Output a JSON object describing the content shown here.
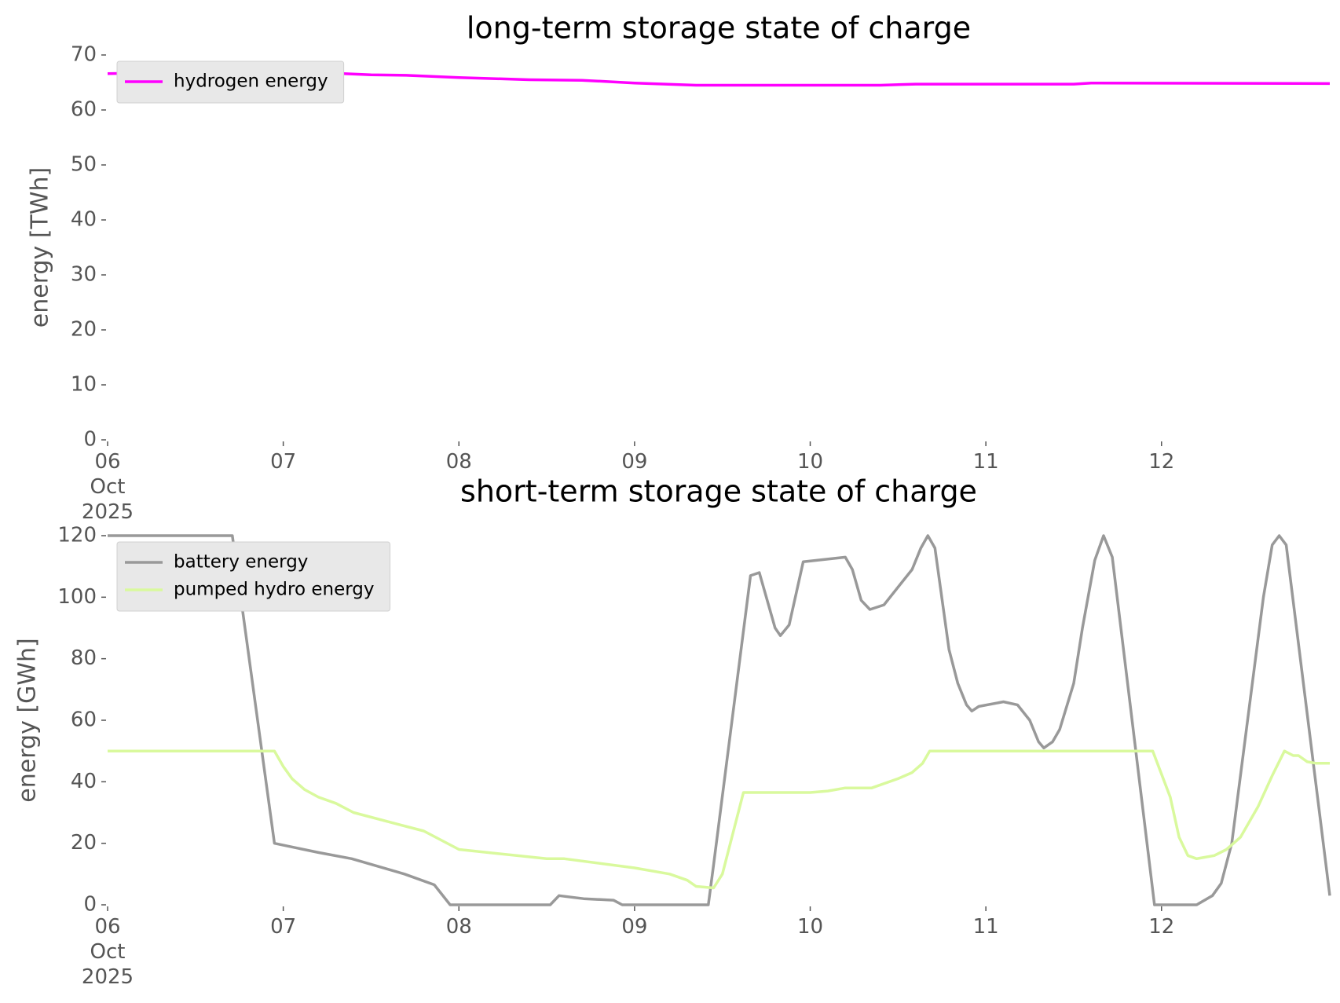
{
  "chart_data": [
    {
      "type": "line",
      "title": "long-term storage state of charge",
      "ylabel": "energy [TWh]",
      "xlim": [
        6,
        12.958
      ],
      "ylim": [
        0,
        70
      ],
      "yticks": [
        0,
        10,
        20,
        30,
        40,
        50,
        60,
        70
      ],
      "xticks": [
        {
          "value": 6,
          "label": "06\nOct\n2025"
        },
        {
          "value": 7,
          "label": "07"
        },
        {
          "value": 8,
          "label": "08"
        },
        {
          "value": 9,
          "label": "09"
        },
        {
          "value": 10,
          "label": "10"
        },
        {
          "value": 11,
          "label": "11"
        },
        {
          "value": 12,
          "label": "12"
        }
      ],
      "legend": "upper left",
      "series": [
        {
          "name": "hydrogen energy",
          "color": "#ff00ff",
          "x": [
            6,
            6.5,
            7.2,
            7.5,
            7.7,
            8,
            8.4,
            8.7,
            9,
            9.35,
            10.4,
            10.6,
            11.5,
            11.6,
            12.958
          ],
          "values": [
            66.6,
            66.9,
            66.8,
            66.4,
            66.3,
            65.9,
            65.5,
            65.4,
            64.9,
            64.5,
            64.5,
            64.7,
            64.7,
            64.9,
            64.8
          ]
        }
      ]
    },
    {
      "type": "line",
      "title": "short-term storage state of charge",
      "ylabel": "energy [GWh]",
      "xlim": [
        6,
        12.958
      ],
      "ylim": [
        0,
        120
      ],
      "yticks": [
        0,
        20,
        40,
        60,
        80,
        100,
        120
      ],
      "xticks": [
        {
          "value": 6,
          "label": "06\nOct\n2025"
        },
        {
          "value": 7,
          "label": "07"
        },
        {
          "value": 8,
          "label": "08"
        },
        {
          "value": 9,
          "label": "09"
        },
        {
          "value": 10,
          "label": "10"
        },
        {
          "value": 11,
          "label": "11"
        },
        {
          "value": 12,
          "label": "12"
        }
      ],
      "legend": "upper left",
      "series": [
        {
          "name": "battery energy",
          "color": "#999999",
          "x": [
            6,
            6.71,
            6.95,
            7.2,
            7.39,
            7.69,
            7.86,
            7.95,
            8.52,
            8.57,
            8.71,
            8.88,
            8.93,
            9.42,
            9.45,
            9.66,
            9.71,
            9.8,
            9.83,
            9.88,
            9.96,
            10.2,
            10.24,
            10.29,
            10.34,
            10.42,
            10.58,
            10.63,
            10.67,
            10.71,
            10.79,
            10.84,
            10.89,
            10.92,
            10.96,
            11.1,
            11.18,
            11.25,
            11.3,
            11.33,
            11.38,
            11.42,
            11.5,
            11.55,
            11.62,
            11.67,
            11.72,
            11.96,
            12.2,
            12.29,
            12.34,
            12.4,
            12.58,
            12.63,
            12.67,
            12.71,
            12.958
          ],
          "values": [
            120,
            120,
            20,
            17,
            15,
            10,
            6.5,
            0,
            0,
            3,
            2,
            1.5,
            0,
            0,
            13,
            107,
            108,
            90,
            87.5,
            91,
            111.5,
            113,
            109,
            99,
            96,
            97.5,
            109,
            116,
            120,
            116,
            83,
            72,
            65,
            63,
            64.5,
            66,
            65,
            60,
            53,
            51,
            53,
            57,
            72,
            90,
            112,
            120,
            113,
            0,
            0,
            3,
            7,
            20,
            100,
            117,
            120,
            117,
            3
          ]
        },
        {
          "name": "pumped hydro energy",
          "color": "#d9f99d",
          "x": [
            6,
            6.95,
            7,
            7.05,
            7.12,
            7.2,
            7.3,
            7.4,
            7.6,
            7.8,
            8,
            8.5,
            8.6,
            9,
            9.2,
            9.3,
            9.35,
            9.45,
            9.5,
            9.62,
            10,
            10.1,
            10.2,
            10.35,
            10.5,
            10.58,
            10.64,
            10.68,
            11.95,
            12.05,
            12.1,
            12.15,
            12.2,
            12.3,
            12.37,
            12.45,
            12.55,
            12.63,
            12.7,
            12.75,
            12.78,
            12.83,
            12.88,
            12.958
          ],
          "values": [
            50,
            50,
            45,
            41,
            37.5,
            35,
            33,
            30,
            27,
            24,
            18,
            15,
            15,
            12,
            10,
            8,
            6,
            5.5,
            10,
            36.5,
            36.5,
            37,
            38,
            38,
            41,
            43,
            46,
            50,
            50,
            35,
            22,
            16,
            15,
            16,
            18,
            22,
            32,
            42,
            50,
            48.5,
            48.5,
            46.5,
            46,
            46
          ]
        }
      ]
    }
  ]
}
